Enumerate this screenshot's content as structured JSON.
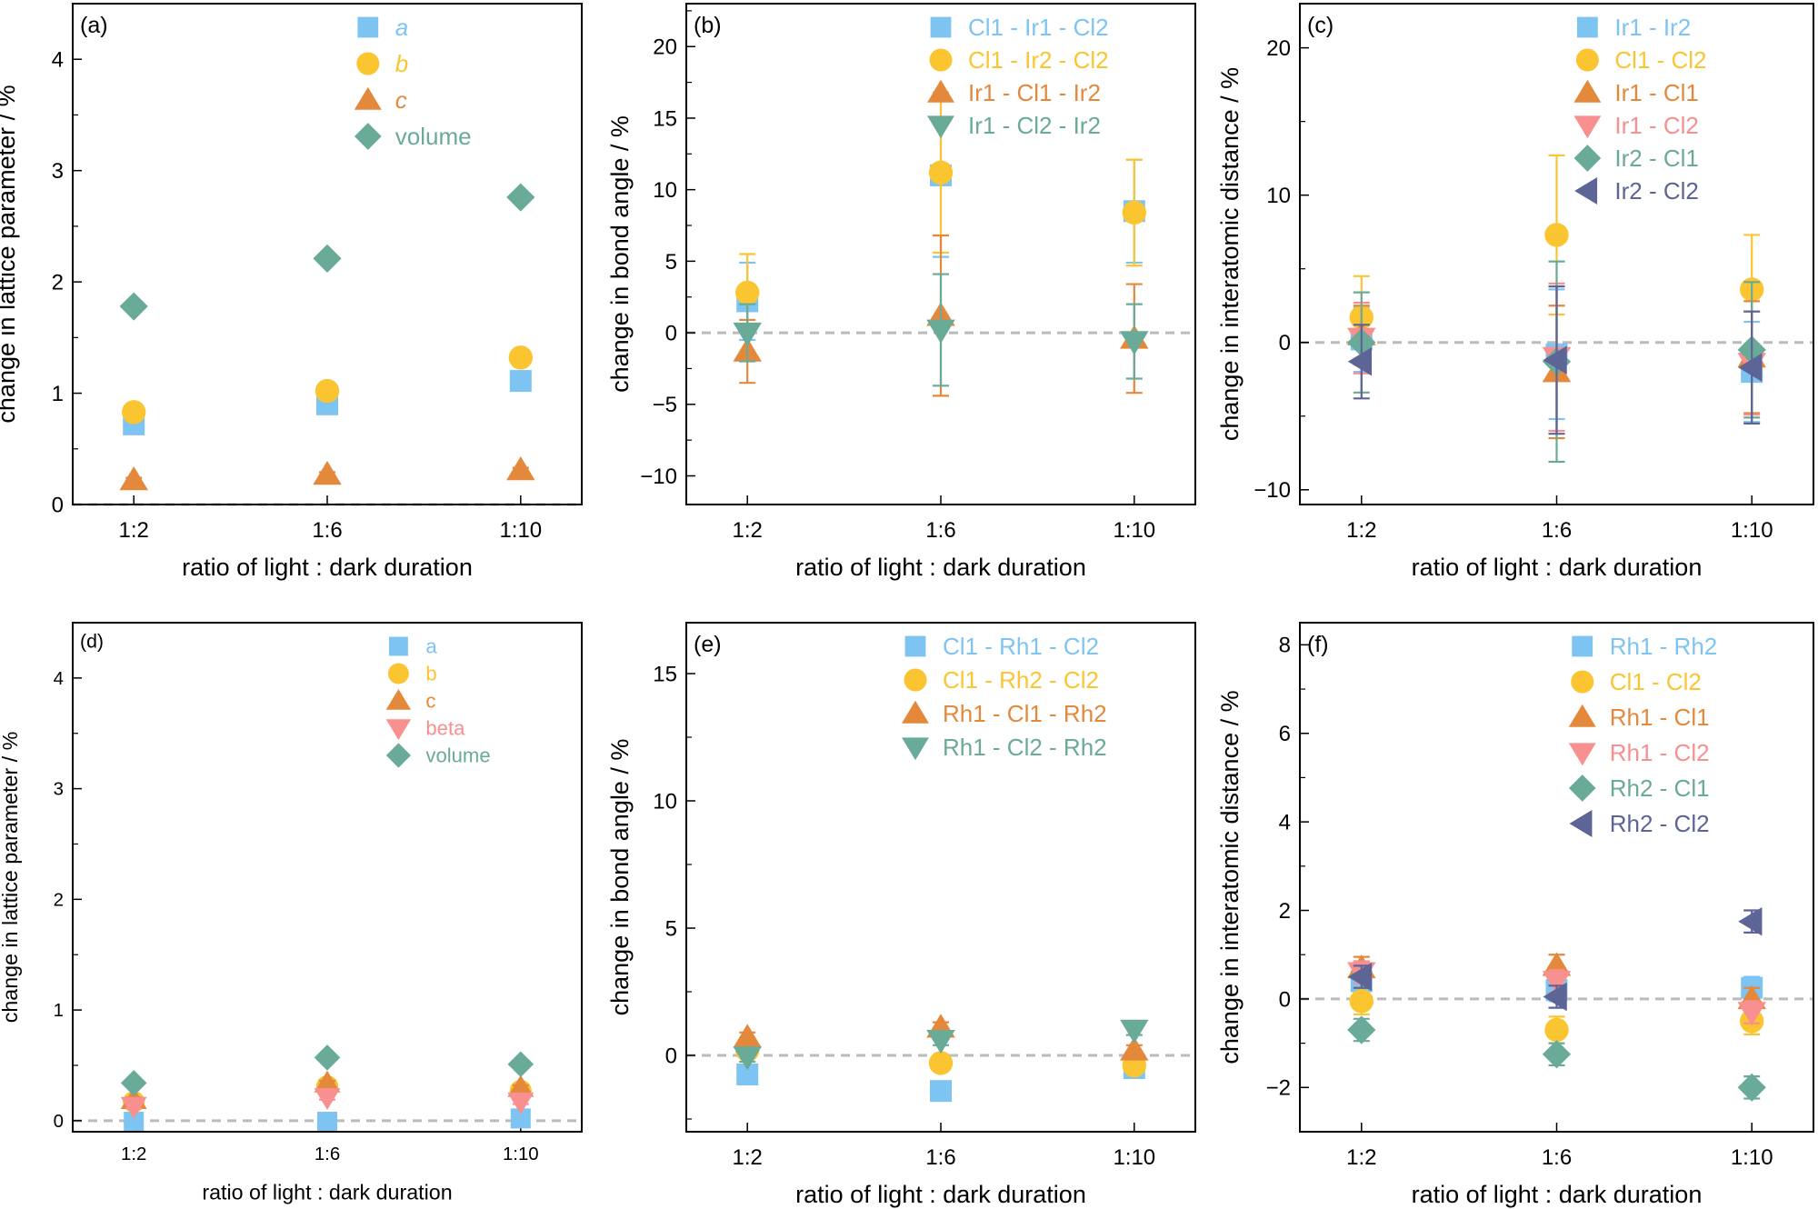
{
  "figure": {
    "colors": {
      "blue": "#7ec4f2",
      "yellow": "#fbc532",
      "orange": "#e4893c",
      "pink": "#f7908f",
      "green": "#6aaa98",
      "purple": "#5d6496",
      "refline": "#bbbbbb"
    }
  },
  "chart_data": [
    {
      "panel": "(a)",
      "type": "scatter",
      "xlabel": "ratio of light : dark duration",
      "ylabel": "change in lattice parameter / %",
      "categories": [
        "1:2",
        "1:6",
        "1:10"
      ],
      "ylim": [
        0,
        4.5
      ],
      "yticks": [
        0,
        1,
        2,
        3,
        4
      ],
      "legend_position": "top-right",
      "legend_italic": true,
      "reference_line": 0,
      "series": [
        {
          "name": "a",
          "marker": "square",
          "color": "blue",
          "values": [
            0.72,
            0.9,
            1.11
          ],
          "errors": [
            0.03,
            0.03,
            0.03
          ]
        },
        {
          "name": "b",
          "marker": "circle",
          "color": "yellow",
          "values": [
            0.83,
            1.02,
            1.32
          ],
          "errors": [
            0.03,
            0.03,
            0.03
          ]
        },
        {
          "name": "c",
          "marker": "triangle-up",
          "color": "orange",
          "values": [
            0.22,
            0.27,
            0.31
          ],
          "errors": [
            0.02,
            0.02,
            0.02
          ]
        },
        {
          "name": "volume",
          "marker": "diamond",
          "color": "green",
          "values": [
            1.78,
            2.21,
            2.76
          ],
          "errors": [
            0.03,
            0.03,
            0.03
          ]
        }
      ]
    },
    {
      "panel": "(b)",
      "type": "scatter",
      "xlabel": "ratio of light : dark duration",
      "ylabel": "change in bond angle / %",
      "categories": [
        "1:2",
        "1:6",
        "1:10"
      ],
      "ylim": [
        -12,
        23
      ],
      "yticks": [
        -10,
        -5,
        0,
        5,
        10,
        15,
        20
      ],
      "legend_position": "top-right",
      "reference_line": 0,
      "series": [
        {
          "name": "Cl1 - Ir1 - Cl2",
          "marker": "square",
          "color": "blue",
          "values": [
            2.2,
            11.0,
            8.5
          ],
          "errors": [
            2.7,
            5.7,
            3.6
          ]
        },
        {
          "name": "Cl1 - Ir2 - Cl2",
          "marker": "circle",
          "color": "yellow",
          "values": [
            2.8,
            11.2,
            8.4
          ],
          "errors": [
            2.7,
            5.6,
            3.7
          ]
        },
        {
          "name": "Ir1 - Cl1 - Ir2",
          "marker": "triangle-up",
          "color": "orange",
          "values": [
            -1.3,
            1.2,
            -0.4
          ],
          "errors": [
            2.2,
            5.6,
            3.8
          ]
        },
        {
          "name": "Ir1 - Cl2 - Ir2",
          "marker": "triangle-down",
          "color": "green",
          "values": [
            0.0,
            0.2,
            -0.6
          ],
          "errors": [
            2.0,
            3.9,
            2.6
          ]
        }
      ]
    },
    {
      "panel": "(c)",
      "type": "scatter",
      "xlabel": "ratio of light : dark duration",
      "ylabel": "change in interatomic distance / %",
      "categories": [
        "1:2",
        "1:6",
        "1:10"
      ],
      "ylim": [
        -11,
        23
      ],
      "yticks": [
        -10,
        0,
        10,
        20
      ],
      "legend_position": "top-right",
      "reference_line": 0,
      "series": [
        {
          "name": "Ir1 - Ir2",
          "marker": "square",
          "color": "blue",
          "values": [
            0.2,
            -0.8,
            -2.0
          ],
          "errors": [
            2.2,
            4.4,
            3.4
          ]
        },
        {
          "name": "Cl1 - Cl2",
          "marker": "circle",
          "color": "yellow",
          "values": [
            1.7,
            7.3,
            3.6
          ],
          "errors": [
            2.8,
            5.4,
            3.7
          ]
        },
        {
          "name": "Ir1 - Cl1",
          "marker": "triangle-up",
          "color": "orange",
          "values": [
            0.5,
            -2.0,
            -1.0
          ],
          "errors": [
            2.0,
            4.5,
            3.8
          ]
        },
        {
          "name": "Ir1 - Cl2",
          "marker": "triangle-down",
          "color": "pink",
          "values": [
            0.3,
            -1.0,
            -1.4
          ],
          "errors": [
            2.4,
            5.0,
            3.5
          ]
        },
        {
          "name": "Ir2 - Cl1",
          "marker": "diamond",
          "color": "green",
          "values": [
            0.0,
            -1.3,
            -0.5
          ],
          "errors": [
            3.4,
            6.8,
            4.6
          ]
        },
        {
          "name": "Ir2 - Cl2",
          "marker": "triangle-left",
          "color": "purple",
          "values": [
            -1.3,
            -1.2,
            -1.7
          ],
          "errors": [
            2.5,
            5.0,
            3.8
          ]
        }
      ]
    },
    {
      "panel": "(d)",
      "type": "scatter",
      "xlabel": "ratio of light : dark duration",
      "ylabel": "change in lattice parameter / %",
      "categories": [
        "1:2",
        "1:6",
        "1:10"
      ],
      "ylim": [
        -0.1,
        4.5
      ],
      "yticks": [
        0,
        1,
        2,
        3,
        4
      ],
      "legend_position": "top-right",
      "reference_line": 0,
      "series": [
        {
          "name": "a",
          "marker": "square",
          "color": "blue",
          "values": [
            -0.01,
            -0.01,
            0.02
          ],
          "errors": [
            0.01,
            0.01,
            0.01
          ]
        },
        {
          "name": "b",
          "marker": "circle",
          "color": "yellow",
          "values": [
            0.17,
            0.31,
            0.27
          ],
          "errors": [
            0.02,
            0.02,
            0.02
          ]
        },
        {
          "name": "c",
          "marker": "triangle-up",
          "color": "orange",
          "values": [
            0.19,
            0.34,
            0.3
          ],
          "errors": [
            0.02,
            0.02,
            0.02
          ]
        },
        {
          "name": "beta",
          "marker": "triangle-down",
          "color": "pink",
          "values": [
            0.13,
            0.21,
            0.17
          ],
          "errors": [
            0.02,
            0.02,
            0.02
          ]
        },
        {
          "name": "volume",
          "marker": "diamond",
          "color": "green",
          "values": [
            0.34,
            0.57,
            0.51
          ],
          "errors": [
            0.02,
            0.02,
            0.02
          ]
        }
      ]
    },
    {
      "panel": "(e)",
      "type": "scatter",
      "xlabel": "ratio of light : dark duration",
      "ylabel": "change in bond angle / %",
      "categories": [
        "1:2",
        "1:6",
        "1:10"
      ],
      "ylim": [
        -3,
        17
      ],
      "yticks": [
        0,
        5,
        10,
        15
      ],
      "legend_position": "top-right",
      "reference_line": 0,
      "series": [
        {
          "name": "Cl1 - Rh1 - Cl2",
          "marker": "square",
          "color": "blue",
          "values": [
            -0.75,
            -1.4,
            -0.5
          ],
          "errors": [
            0.2,
            0.2,
            0.2
          ]
        },
        {
          "name": "Cl1 - Rh2 - Cl2",
          "marker": "circle",
          "color": "yellow",
          "values": [
            0.2,
            -0.3,
            -0.4
          ],
          "errors": [
            0.2,
            0.2,
            0.2
          ]
        },
        {
          "name": "Rh1 - Cl1 - Rh2",
          "marker": "triangle-up",
          "color": "orange",
          "values": [
            0.7,
            1.1,
            0.2
          ],
          "errors": [
            0.2,
            0.2,
            0.2
          ]
        },
        {
          "name": "Rh1 - Cl2 - Rh2",
          "marker": "triangle-down",
          "color": "green",
          "values": [
            -0.05,
            0.6,
            1.0
          ],
          "errors": [
            0.2,
            0.2,
            0.2
          ]
        }
      ]
    },
    {
      "panel": "(f)",
      "type": "scatter",
      "xlabel": "ratio of light : dark duration",
      "ylabel": "change in interatomic distance / %",
      "categories": [
        "1:2",
        "1:6",
        "1:10"
      ],
      "ylim": [
        -3,
        8.5
      ],
      "yticks": [
        -2,
        0,
        2,
        4,
        6,
        8
      ],
      "legend_position": "top-right",
      "reference_line": 0,
      "series": [
        {
          "name": "Rh1 - Rh2",
          "marker": "square",
          "color": "blue",
          "values": [
            0.4,
            0.2,
            0.25
          ],
          "errors": [
            0.25,
            0.25,
            0.25
          ]
        },
        {
          "name": "Cl1 - Cl2",
          "marker": "circle",
          "color": "yellow",
          "values": [
            -0.05,
            -0.7,
            -0.5
          ],
          "errors": [
            0.3,
            0.3,
            0.3
          ]
        },
        {
          "name": "Rh1 - Cl1",
          "marker": "triangle-up",
          "color": "orange",
          "values": [
            0.7,
            0.75,
            0.0
          ],
          "errors": [
            0.25,
            0.25,
            0.25
          ]
        },
        {
          "name": "Rh1 - Cl2",
          "marker": "triangle-down",
          "color": "pink",
          "values": [
            0.6,
            0.4,
            -0.3
          ],
          "errors": [
            0.25,
            0.25,
            0.25
          ]
        },
        {
          "name": "Rh2 - Cl1",
          "marker": "diamond",
          "color": "green",
          "values": [
            -0.7,
            -1.25,
            -2.0
          ],
          "errors": [
            0.25,
            0.25,
            0.25
          ]
        },
        {
          "name": "Rh2 - Cl2",
          "marker": "triangle-left",
          "color": "purple",
          "values": [
            0.5,
            0.05,
            1.75
          ],
          "errors": [
            0.25,
            0.25,
            0.25
          ]
        }
      ]
    }
  ]
}
